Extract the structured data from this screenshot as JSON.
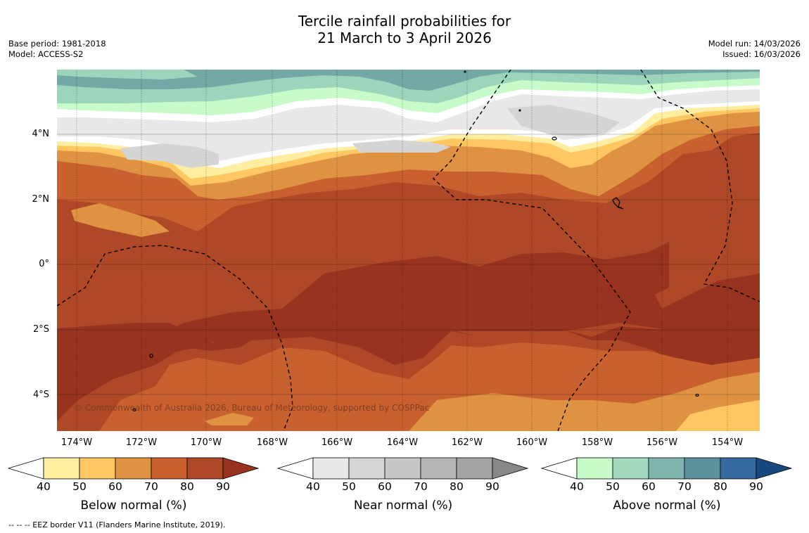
{
  "title": {
    "line1": "Tercile rainfall probabilities for",
    "line2": "21 March to 3 April 2026"
  },
  "meta": {
    "base_period": "Base period: 1981-2018",
    "model": "Model: ACCESS-S2",
    "model_run": "Model run: 14/03/2026",
    "issued": "Issued: 16/03/2026"
  },
  "map": {
    "lat_labels": [
      "4°N",
      "2°N",
      "0°",
      "2°S",
      "4°S"
    ],
    "lon_labels": [
      "174°W",
      "172°W",
      "170°W",
      "168°W",
      "166°W",
      "164°W",
      "162°W",
      "160°W",
      "158°W",
      "156°W",
      "154°W"
    ],
    "copyright": "© Commonwealth of Australia 2026, Bureau of Meteorology, supported by COSPPac",
    "colors": {
      "below_40": "#ffeda0",
      "below_50": "#fec761",
      "below_60": "#e09243",
      "below_70": "#c8612f",
      "below_80": "#ae4826",
      "below_90": "#98331f",
      "near_40": "#e8e8e8",
      "near_50": "#d4d4d4",
      "above_40": "#c7fcca",
      "above_50": "#9dd4bc",
      "above_60": "#72a8a6"
    }
  },
  "legend": {
    "below": {
      "title": "Below normal (%)",
      "ticks": [
        "40",
        "50",
        "60",
        "70",
        "80",
        "90"
      ],
      "colors": [
        "#ffeda0",
        "#fec761",
        "#e09243",
        "#c8612f",
        "#ae4826",
        "#98331f"
      ]
    },
    "near": {
      "title": "Near normal (%)",
      "ticks": [
        "40",
        "50",
        "60",
        "70",
        "80",
        "90"
      ],
      "colors": [
        "#e8e8e8",
        "#d5d5d5",
        "#c6c6c6",
        "#b5b5b5",
        "#a4a4a4",
        "#888888"
      ]
    },
    "above": {
      "title": "Above normal (%)",
      "ticks": [
        "40",
        "50",
        "60",
        "70",
        "80",
        "90"
      ],
      "colors": [
        "#c7fcca",
        "#a4d9bf",
        "#80b5ae",
        "#5a939d",
        "#346aa0",
        "#18497e"
      ]
    }
  },
  "footnote": "--  --  -- EEZ border V11 (Flanders Marine Institute, 2019)."
}
